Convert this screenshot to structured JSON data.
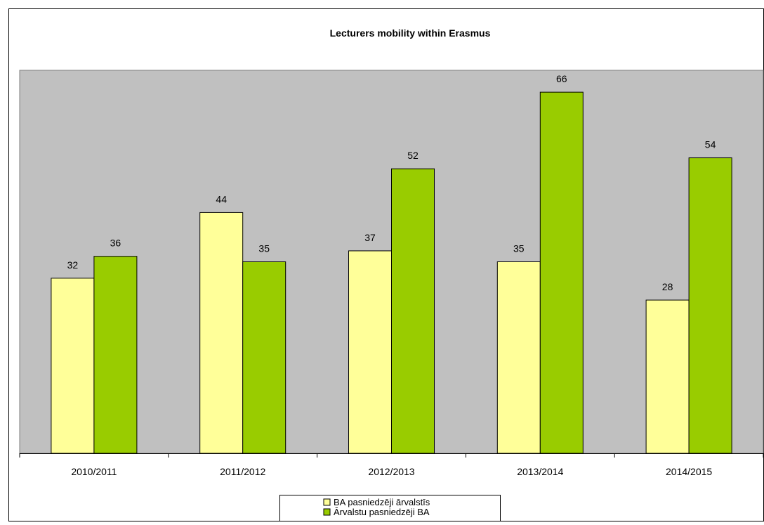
{
  "chart_data": {
    "type": "bar",
    "title": "Lecturers mobility within Erasmus",
    "xlabel": "",
    "ylabel": "",
    "categories": [
      "2010/2011",
      "2011/2012",
      "2012/2013",
      "2013/2014",
      "2014/2015"
    ],
    "series": [
      {
        "name": "BA pasniedzēji ārvalstīs",
        "color": "#ffff99",
        "values": [
          32,
          44,
          37,
          35,
          28
        ]
      },
      {
        "name": "Ārvalstu pasniedzēji BA",
        "color": "#99cc00",
        "values": [
          36,
          35,
          52,
          66,
          54
        ]
      }
    ],
    "ylim": [
      0,
      70
    ],
    "grid": false,
    "data_labels": true,
    "legend_position": "bottom",
    "plot_background": "#c0c0c0"
  }
}
